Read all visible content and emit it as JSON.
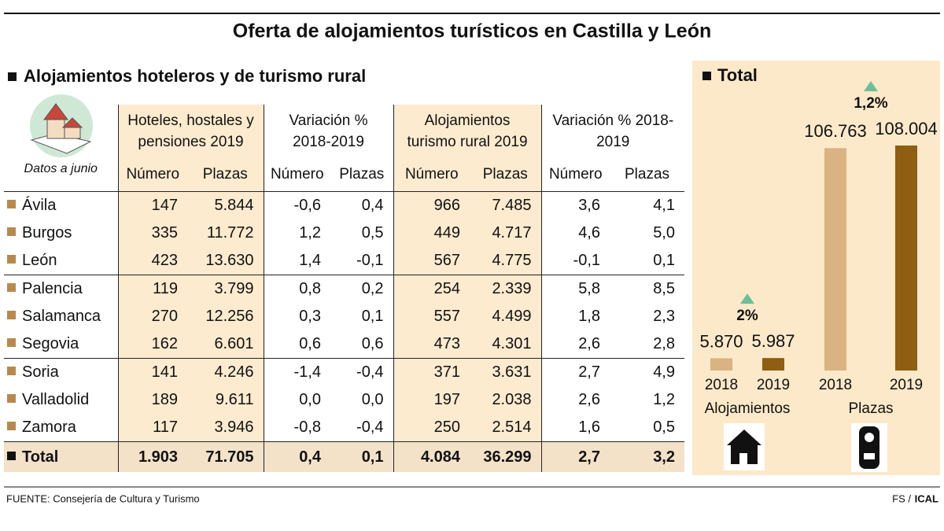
{
  "title": "Oferta de alojamientos turísticos en Castilla y León",
  "table": {
    "title": "Alojamientos hoteleros y de turismo rural",
    "note": "Datos a junio",
    "groups": [
      "Hoteles, hostales y pensiones 2019",
      "Variación % 2018-2019",
      "Alojamientos turismo rural 2019",
      "Variación % 2018-2019"
    ],
    "columns": [
      "Número",
      "Plazas",
      "Número",
      "Plazas",
      "Número",
      "Plazas",
      "Número",
      "Plazas"
    ],
    "rows": [
      [
        "Ávila",
        "147",
        "5.844",
        "-0,6",
        "0,4",
        "966",
        "7.485",
        "3,6",
        "4,1"
      ],
      [
        "Burgos",
        "335",
        "11.772",
        "1,2",
        "0,5",
        "449",
        "4.717",
        "4,6",
        "5,0"
      ],
      [
        "León",
        "423",
        "13.630",
        "1,4",
        "-0,1",
        "567",
        "4.775",
        "-0,1",
        "0,1"
      ],
      [
        "Palencia",
        "119",
        "3.799",
        "0,8",
        "0,2",
        "254",
        "2.339",
        "5,8",
        "8,5"
      ],
      [
        "Salamanca",
        "270",
        "12.256",
        "0,3",
        "0,1",
        "557",
        "4.499",
        "1,8",
        "2,3"
      ],
      [
        "Segovia",
        "162",
        "6.601",
        "0,6",
        "0,6",
        "473",
        "4.301",
        "2,6",
        "2,8"
      ],
      [
        "Soria",
        "141",
        "4.246",
        "-1,4",
        "-0,4",
        "371",
        "3.631",
        "2,7",
        "4,9"
      ],
      [
        "Valladolid",
        "189",
        "9.611",
        "0,0",
        "0,0",
        "197",
        "2.038",
        "2,6",
        "1,2"
      ],
      [
        "Zamora",
        "117",
        "3.946",
        "-0,8",
        "-0,4",
        "250",
        "2.514",
        "1,6",
        "0,5"
      ]
    ],
    "total": [
      "Total",
      "1.903",
      "71.705",
      "0,4",
      "0,1",
      "4.084",
      "36.299",
      "2,7",
      "3,2"
    ]
  },
  "panel_title": "Total",
  "chart_data": [
    {
      "type": "bar",
      "title": "Alojamientos",
      "categories": [
        "2018",
        "2019"
      ],
      "values": [
        5870,
        5987
      ],
      "value_labels": [
        "5.870",
        "5.987"
      ],
      "colors": [
        "#d9b382",
        "#8f5e12"
      ],
      "annotation": "2%"
    },
    {
      "type": "bar",
      "title": "Plazas",
      "categories": [
        "2018",
        "2019"
      ],
      "values": [
        106763,
        108004
      ],
      "value_labels": [
        "106.763",
        "108.004"
      ],
      "colors": [
        "#d9b382",
        "#8f5e12"
      ],
      "annotation": "1,2%"
    }
  ],
  "source": "FUENTE: Consejería de Cultura y Turismo",
  "credit": "FS /",
  "agency": "ICAL"
}
